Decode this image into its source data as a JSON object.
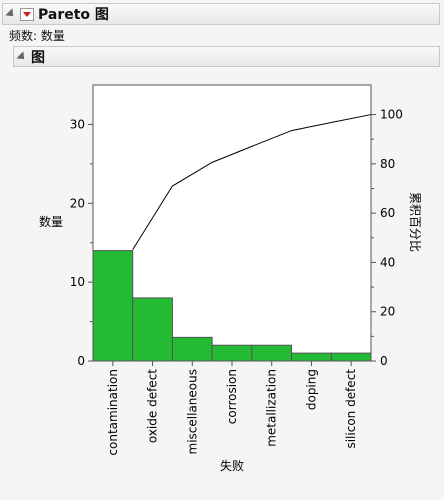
{
  "report": {
    "title": "Pareto 图",
    "subtitle": "频数: 数量",
    "section_title": "图"
  },
  "colors": {
    "bar": "#22bb33",
    "line": "#000000"
  },
  "chart_data": {
    "type": "bar",
    "categories": [
      "contamination",
      "oxide defect",
      "miscellaneous",
      "corrosion",
      "metallization",
      "doping",
      "silicon defect"
    ],
    "values": [
      14,
      8,
      3,
      2,
      2,
      1,
      1
    ],
    "cumulative_percent": [
      45.2,
      71.0,
      80.6,
      87.1,
      93.5,
      96.8,
      100.0
    ],
    "xlabel": "失败",
    "ylabel": "数量",
    "y2label": "累积百分比",
    "ylim": [
      0,
      35
    ],
    "yticks": [
      0,
      10,
      20,
      30
    ],
    "y2lim": [
      0,
      112
    ],
    "y2ticks": [
      0,
      20,
      40,
      60,
      80,
      100
    ],
    "grid": false
  }
}
